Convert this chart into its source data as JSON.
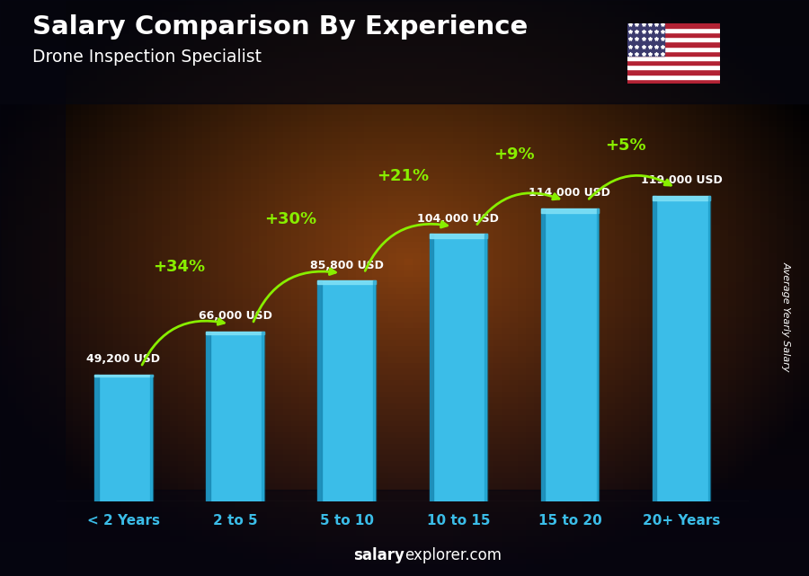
{
  "title": "Salary Comparison By Experience",
  "subtitle": "Drone Inspection Specialist",
  "categories": [
    "< 2 Years",
    "2 to 5",
    "5 to 10",
    "10 to 15",
    "15 to 20",
    "20+ Years"
  ],
  "values": [
    49200,
    66000,
    85800,
    104000,
    114000,
    119000
  ],
  "labels": [
    "49,200 USD",
    "66,000 USD",
    "85,800 USD",
    "104,000 USD",
    "114,000 USD",
    "119,000 USD"
  ],
  "pct_changes": [
    "+34%",
    "+30%",
    "+21%",
    "+9%",
    "+5%"
  ],
  "bar_color": "#3BBDE8",
  "bar_left_color": "#1A8AB5",
  "bar_top_color": "#7DDFF5",
  "pct_color": "#88EE00",
  "label_color": "#FFFFFF",
  "title_color": "#FFFFFF",
  "subtitle_color": "#FFFFFF",
  "xlabel_color": "#3BBDE8",
  "footer_bold": "salary",
  "footer_normal": "explorer.com",
  "ylabel_text": "Average Yearly Salary",
  "ylim": [
    0,
    148000
  ],
  "bg_dark": "#0D0D1A",
  "bg_mid_dark": "#1A1010",
  "bg_warm": "#7A3A10"
}
